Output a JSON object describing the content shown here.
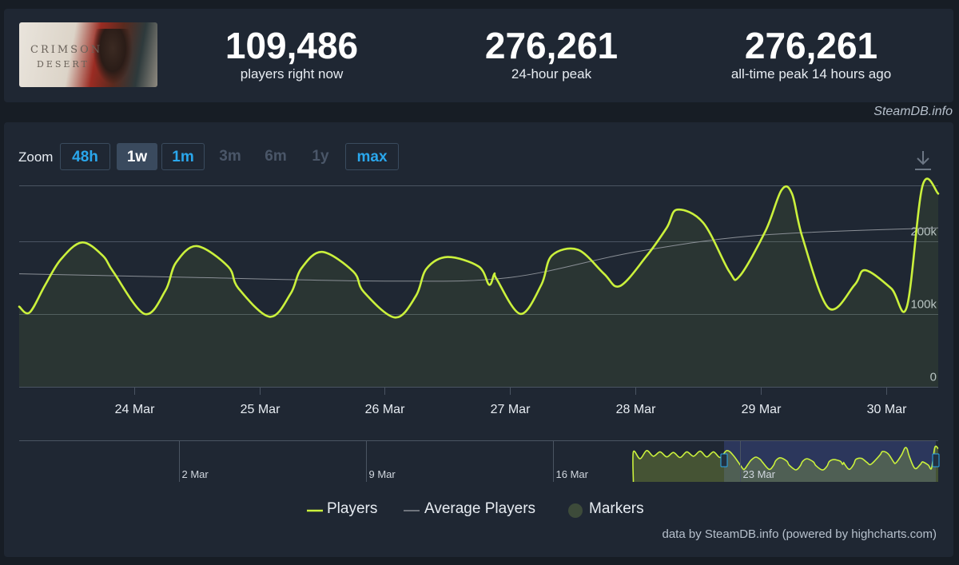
{
  "header": {
    "game_art_text_line1": "CRIMSON",
    "game_art_text_line2": "DESERT",
    "stats": [
      {
        "value": "109,486",
        "label": "players right now"
      },
      {
        "value": "276,261",
        "label": "24-hour peak"
      },
      {
        "value": "276,261",
        "label": "all-time peak 14 hours ago"
      }
    ],
    "credit": "SteamDB.info"
  },
  "zoom": {
    "label": "Zoom",
    "buttons": [
      {
        "label": "48h",
        "state": "enabled"
      },
      {
        "label": "1w",
        "state": "selected"
      },
      {
        "label": "1m",
        "state": "enabled"
      },
      {
        "label": "3m",
        "state": "disabled"
      },
      {
        "label": "6m",
        "state": "disabled"
      },
      {
        "label": "1y",
        "state": "disabled"
      },
      {
        "label": "max",
        "state": "enabled"
      }
    ]
  },
  "download_icon": "download-icon",
  "colors": {
    "players": "#cbf13c",
    "average": "#8a8f96",
    "markers": "#3d4b3a",
    "grid": "#4a5462",
    "navigator_selection": "#2f3c66"
  },
  "chart_data": {
    "type": "line",
    "ylim": [
      0,
      276261
    ],
    "yticks": [
      0,
      100000,
      200000
    ],
    "ytick_labels": [
      "0",
      "100k",
      "200k"
    ],
    "xlim": [
      "2026-03-23 02:00",
      "2026-03-30 10:00"
    ],
    "xticks": [
      "2026-03-24",
      "2026-03-25",
      "2026-03-26",
      "2026-03-27",
      "2026-03-28",
      "2026-03-29",
      "2026-03-30"
    ],
    "xtick_labels": [
      "24 Mar",
      "25 Mar",
      "26 Mar",
      "27 Mar",
      "28 Mar",
      "29 Mar",
      "30 Mar"
    ],
    "series": [
      {
        "name": "Players",
        "x": [
          "2026-03-23 02:00",
          "2026-03-23 04:00",
          "2026-03-23 07:00",
          "2026-03-23 10:00",
          "2026-03-23 14:00",
          "2026-03-23 18:00",
          "2026-03-23 20:00",
          "2026-03-24 02:00",
          "2026-03-24 06:00",
          "2026-03-24 08:00",
          "2026-03-24 12:00",
          "2026-03-24 18:00",
          "2026-03-24 20:00",
          "2026-03-25 02:00",
          "2026-03-25 06:00",
          "2026-03-25 08:00",
          "2026-03-25 12:00",
          "2026-03-25 18:00",
          "2026-03-25 20:00",
          "2026-03-26 02:00",
          "2026-03-26 06:00",
          "2026-03-26 08:00",
          "2026-03-26 12:00",
          "2026-03-26 18:00",
          "2026-03-26 20:00",
          "2026-03-26 21:00",
          "2026-03-26 21:30",
          "2026-03-27 02:00",
          "2026-03-27 06:00",
          "2026-03-27 08:00",
          "2026-03-27 13:00",
          "2026-03-27 18:00",
          "2026-03-27 21:00",
          "2026-03-28 02:00",
          "2026-03-28 06:00",
          "2026-03-28 08:00",
          "2026-03-28 13:00",
          "2026-03-28 18:00",
          "2026-03-28 20:00",
          "2026-03-29 01:00",
          "2026-03-29 04:00",
          "2026-03-29 06:00",
          "2026-03-29 08:00",
          "2026-03-29 13:00",
          "2026-03-29 18:00",
          "2026-03-29 20:00",
          "2026-03-30 01:00",
          "2026-03-30 04:00",
          "2026-03-30 07:00",
          "2026-03-30 10:00"
        ],
        "y": [
          110000,
          102000,
          140000,
          175000,
          198000,
          180000,
          158000,
          100000,
          132000,
          170000,
          193000,
          165000,
          135000,
          96000,
          128000,
          162000,
          185000,
          158000,
          130000,
          95000,
          125000,
          162000,
          178000,
          165000,
          140000,
          155000,
          147000,
          100000,
          140000,
          180000,
          188000,
          155000,
          138000,
          178000,
          218000,
          243000,
          225000,
          158000,
          152000,
          215000,
          270000,
          265000,
          205000,
          108000,
          140000,
          160000,
          135000,
          110000,
          276000,
          265000
        ]
      },
      {
        "name": "Average Players",
        "x": [
          "2026-03-23 02:00",
          "2026-03-24 12:00",
          "2026-03-26 00:00",
          "2026-03-27 00:00",
          "2026-03-28 00:00",
          "2026-03-29 00:00",
          "2026-03-30 10:00"
        ],
        "y": [
          155000,
          150000,
          145000,
          150000,
          185000,
          208000,
          218000
        ]
      }
    ],
    "legend": [
      {
        "name": "Players",
        "symbol": "line"
      },
      {
        "name": "Average Players",
        "symbol": "line"
      },
      {
        "name": "Markers",
        "symbol": "circle"
      }
    ],
    "legend_position": "bottom-center",
    "grid": true,
    "navigator": {
      "xtick_labels": [
        "2 Mar",
        "9 Mar",
        "16 Mar",
        "23 Mar"
      ],
      "selection_start": "2026-03-23",
      "selection_end": "2026-03-30"
    }
  },
  "footer_credit": "data by SteamDB.info (powered by highcharts.com)"
}
